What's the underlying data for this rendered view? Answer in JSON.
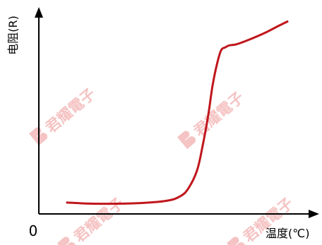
{
  "chart_data": {
    "type": "line",
    "title": "",
    "xlabel": "温度(℃)",
    "ylabel": "电阻(R)",
    "origin_label": "0",
    "xlim": [
      0,
      100
    ],
    "ylim": [
      0,
      100
    ],
    "grid": false,
    "legend": "none",
    "series": [
      {
        "color": "#c0161c",
        "x": [
          10,
          18,
          25,
          35,
          45,
          50,
          53,
          56,
          58,
          60,
          61.5,
          63,
          64.5,
          66,
          67.5,
          70,
          74,
          80,
          85,
          88
        ],
        "y": [
          5.5,
          5.0,
          4.9,
          5.2,
          6.3,
          8.5,
          12.5,
          21,
          33,
          48,
          62,
          72,
          79,
          80.5,
          81.5,
          82,
          84,
          87.5,
          91,
          93
        ]
      }
    ]
  },
  "watermark": {
    "text": "君耀電子",
    "color": "#f4b9b9"
  }
}
